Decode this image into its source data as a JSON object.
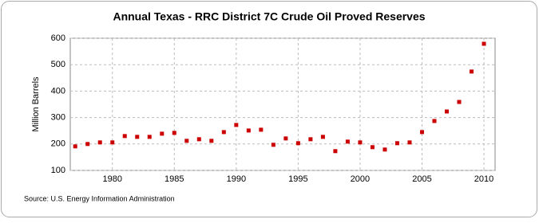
{
  "chart_data": {
    "type": "scatter",
    "title": "Annual Texas - RRC District 7C Crude Oil Proved Reserves",
    "y_label": "Million Barrels",
    "source": "Source: U.S. Energy Information Administration",
    "x": [
      1977,
      1978,
      1979,
      1980,
      1981,
      1982,
      1983,
      1984,
      1985,
      1986,
      1987,
      1988,
      1989,
      1990,
      1991,
      1992,
      1993,
      1994,
      1995,
      1996,
      1997,
      1998,
      1999,
      2000,
      2001,
      2002,
      2003,
      2004,
      2005,
      2006,
      2007,
      2008,
      2009,
      2010
    ],
    "values": [
      191,
      200,
      206,
      206,
      230,
      227,
      227,
      239,
      242,
      212,
      218,
      212,
      245,
      272,
      251,
      254,
      197,
      221,
      203,
      218,
      227,
      173,
      209,
      206,
      188,
      179,
      203,
      206,
      245,
      287,
      323,
      359,
      474,
      579
    ],
    "color": "#cc0000",
    "xlim": [
      1976.6,
      2010.9
    ],
    "ylim": [
      100,
      600
    ],
    "xticks": [
      1980,
      1985,
      1990,
      1995,
      2000,
      2005,
      2010
    ],
    "yticks": [
      100,
      200,
      300,
      400,
      500,
      600
    ],
    "grid": true
  }
}
